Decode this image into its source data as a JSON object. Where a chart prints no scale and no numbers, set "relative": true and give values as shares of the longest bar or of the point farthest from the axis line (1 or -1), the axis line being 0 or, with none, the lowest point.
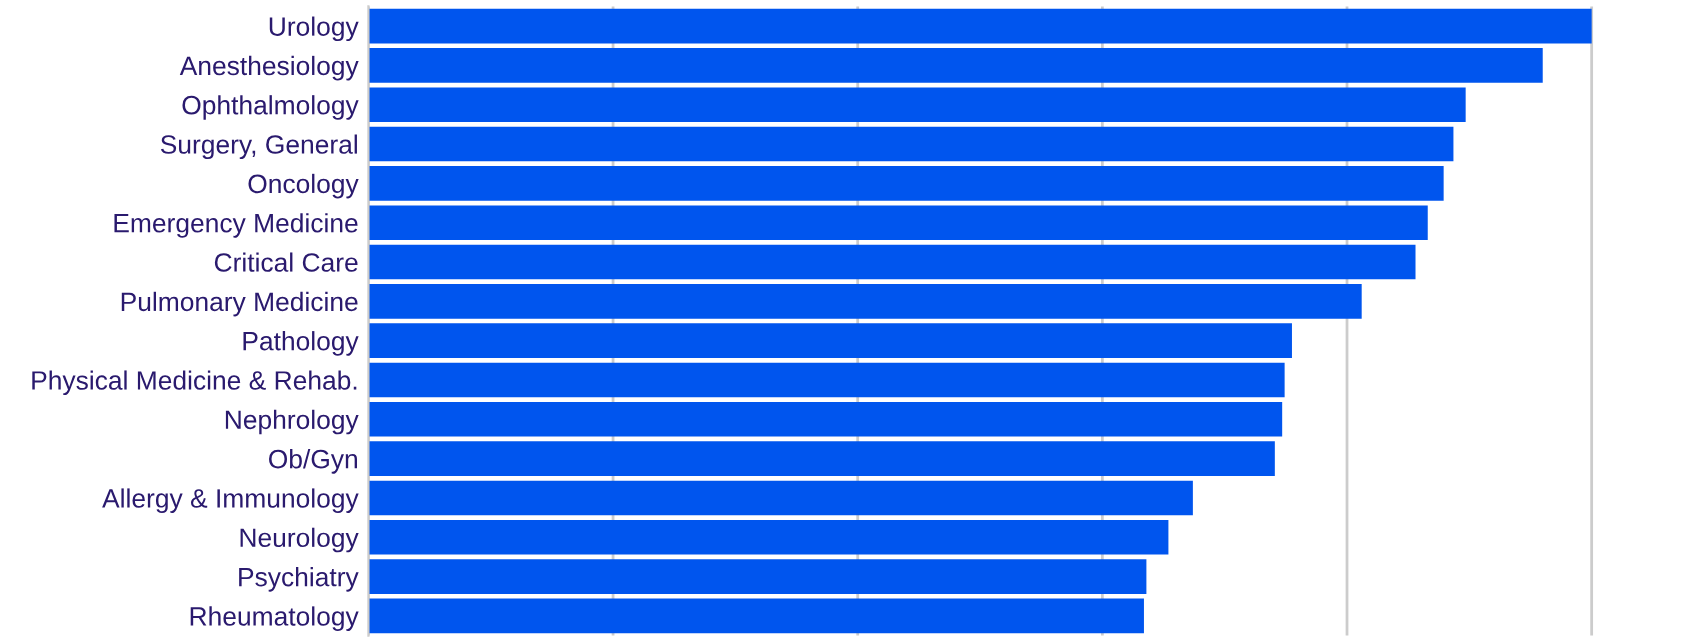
{
  "chart_data": {
    "type": "bar",
    "orientation": "horizontal",
    "relative": true,
    "grid": "x",
    "color": "#0055ee",
    "categories": [
      "Urology",
      "Anesthesiology",
      "Ophthalmology",
      "Surgery, General",
      "Oncology",
      "Emergency Medicine",
      "Critical Care",
      "Pulmonary Medicine",
      "Pathology",
      "Physical Medicine & Rehab.",
      "Nephrology",
      "Ob/Gyn",
      "Allergy & Immunology",
      "Neurology",
      "Psychiatry",
      "Rheumatology"
    ],
    "values": [
      1,
      0.96,
      0.897,
      0.887,
      0.879,
      0.866,
      0.856,
      0.812,
      0.755,
      0.749,
      0.747,
      0.741,
      0.674,
      0.654,
      0.636,
      0.634
    ]
  }
}
